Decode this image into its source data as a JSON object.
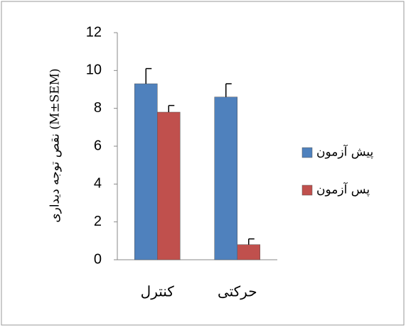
{
  "chart_data": {
    "type": "bar",
    "y_label": "نقص توجه دیداری (M±SEM)",
    "categories": [
      "کنترل",
      "حرکتی"
    ],
    "series": [
      {
        "name": "پیش آزمون",
        "color": "#4f81bd",
        "values": [
          9.3,
          8.6
        ],
        "errors": [
          0.8,
          0.7
        ]
      },
      {
        "name": "پس آزمون",
        "color": "#c0504d",
        "values": [
          7.8,
          0.8
        ],
        "errors": [
          0.35,
          0.3
        ]
      }
    ],
    "ylim": [
      0,
      12
    ],
    "yticks": [
      0,
      2,
      4,
      6,
      8,
      10,
      12
    ],
    "grid": false,
    "legend": "right"
  }
}
